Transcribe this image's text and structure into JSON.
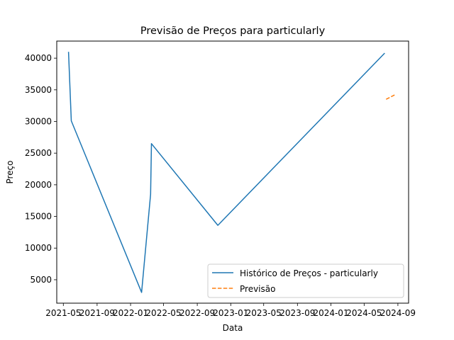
{
  "chart_data": {
    "type": "line",
    "title": "Previsão de Preços para particularly",
    "xlabel": "Data",
    "ylabel": "Preço",
    "x_axis_type": "date",
    "xlim": [
      "2021-04-07",
      "2024-10-10"
    ],
    "ylim": [
      1300,
      42700
    ],
    "x_ticks": [
      {
        "date": "2021-05-01",
        "label": "2021-05"
      },
      {
        "date": "2021-09-01",
        "label": "2021-09"
      },
      {
        "date": "2022-01-01",
        "label": "2022-01"
      },
      {
        "date": "2022-05-01",
        "label": "2022-05"
      },
      {
        "date": "2022-09-01",
        "label": "2022-09"
      },
      {
        "date": "2023-01-01",
        "label": "2023-01"
      },
      {
        "date": "2023-05-01",
        "label": "2023-05"
      },
      {
        "date": "2023-09-01",
        "label": "2023-09"
      },
      {
        "date": "2024-01-01",
        "label": "2024-01"
      },
      {
        "date": "2024-05-01",
        "label": "2024-05"
      },
      {
        "date": "2024-09-01",
        "label": "2024-09"
      }
    ],
    "y_ticks": [
      5000,
      10000,
      15000,
      20000,
      25000,
      30000,
      35000,
      40000
    ],
    "grid": false,
    "legend": {
      "placement": "lower-right"
    },
    "series": [
      {
        "name": "Histórico de Preços - particularly",
        "color": "#1f77b4",
        "style": "solid",
        "points": [
          {
            "x": "2021-05-20",
            "y": 41000
          },
          {
            "x": "2021-05-30",
            "y": 30100
          },
          {
            "x": "2022-02-10",
            "y": 3000
          },
          {
            "x": "2022-03-15",
            "y": 18500
          },
          {
            "x": "2022-03-18",
            "y": 26500
          },
          {
            "x": "2022-11-15",
            "y": 13600
          },
          {
            "x": "2024-07-15",
            "y": 40800
          }
        ]
      },
      {
        "name": "Previsão",
        "color": "#ff7f0e",
        "style": "dashed",
        "points": [
          {
            "x": "2024-07-20",
            "y": 33500
          },
          {
            "x": "2024-08-20",
            "y": 34200
          }
        ]
      }
    ]
  }
}
